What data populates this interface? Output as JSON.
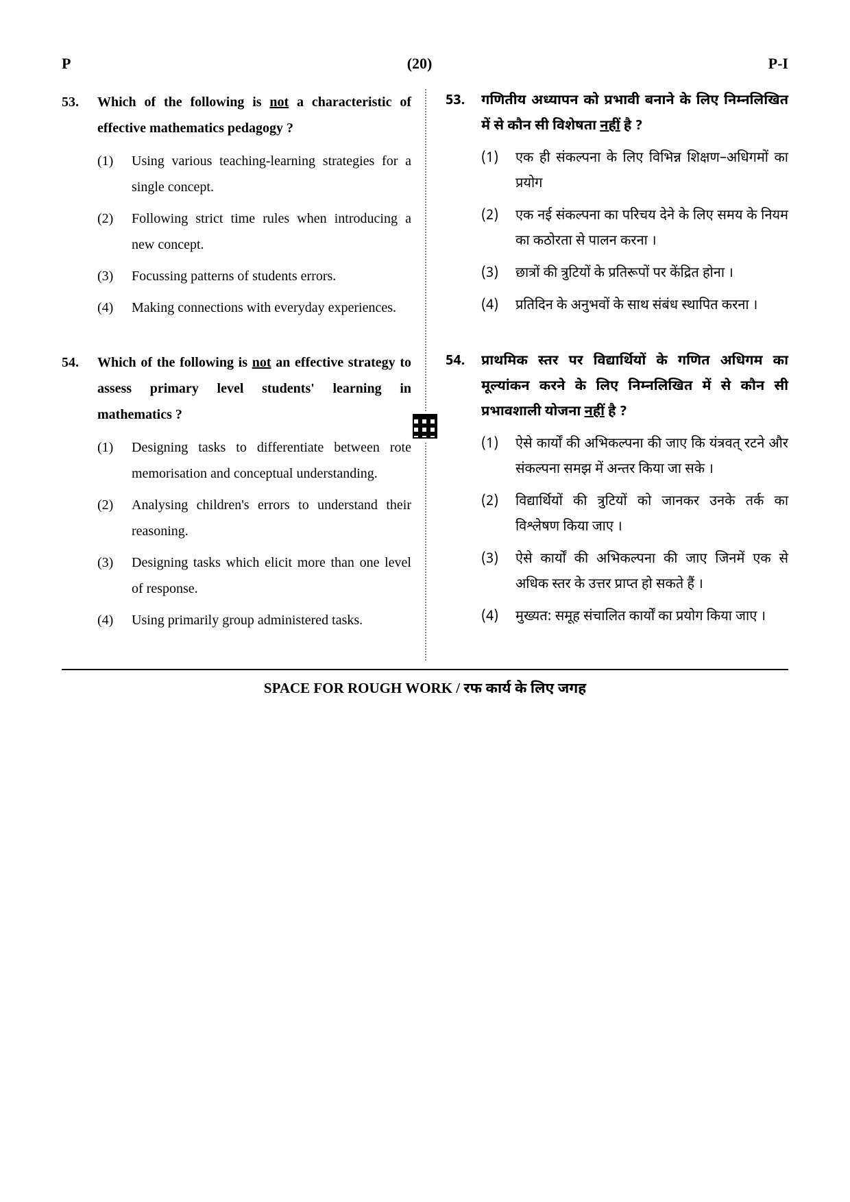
{
  "header": {
    "left": "P",
    "center": "(20)",
    "right": "P-I"
  },
  "left_col": {
    "questions": [
      {
        "num": "53.",
        "stem_before": "Which of the following is ",
        "stem_underlined": "not",
        "stem_after": " a characteristic of effective mathematics pedagogy ?",
        "options": [
          {
            "n": "(1)",
            "t": "Using various teaching-learning strategies for a single concept."
          },
          {
            "n": "(2)",
            "t": "Following strict time rules when introducing a new concept."
          },
          {
            "n": "(3)",
            "t": "Focussing patterns of students errors."
          },
          {
            "n": "(4)",
            "t": "Making connections with everyday experiences."
          }
        ]
      },
      {
        "num": "54.",
        "stem_before": "Which of the following is ",
        "stem_underlined": "not",
        "stem_after": " an effective strategy to assess primary level students' learning in mathematics ?",
        "options": [
          {
            "n": "(1)",
            "t": "Designing tasks to differentiate between rote memorisation and conceptual understanding."
          },
          {
            "n": "(2)",
            "t": "Analysing children's errors to understand their reasoning."
          },
          {
            "n": "(3)",
            "t": "Designing tasks which elicit more than one level of response."
          },
          {
            "n": "(4)",
            "t": "Using primarily group administered tasks."
          }
        ]
      }
    ]
  },
  "right_col": {
    "questions": [
      {
        "num": "53.",
        "stem_before": "गणितीय अध्यापन को प्रभावी बनाने के लिए निम्नलिखित में से कौन सी विशेषता ",
        "stem_underlined": "नहीं",
        "stem_after": " है ?",
        "options": [
          {
            "n": "(1)",
            "t": "एक ही संकल्पना के लिए विभिन्न शिक्षण–अधिगमों का प्रयोग"
          },
          {
            "n": "(2)",
            "t": "एक नई संकल्पना का परिचय देने के लिए समय के नियम का कठोरता से पालन करना ।"
          },
          {
            "n": "(3)",
            "t": "छात्रों की त्रुटियों के प्रतिरूपों पर केंद्रित होना ।"
          },
          {
            "n": "(4)",
            "t": "प्रतिदिन के अनुभवों के साथ संबंध स्थापित करना ।"
          }
        ]
      },
      {
        "num": "54.",
        "stem_before": "प्राथमिक स्तर पर विद्यार्थियों के गणित अधिगम का मूल्यांकन करने के लिए निम्नलिखित में से कौन सी प्रभावशाली योजना ",
        "stem_underlined": "नहीं",
        "stem_after": " है ?",
        "options": [
          {
            "n": "(1)",
            "t": "ऐसे कार्यों की अभिकल्पना की जाए कि यंत्रवत् रटने और संकल्पना समझ में अन्तर किया जा सके ।"
          },
          {
            "n": "(2)",
            "t": "विद्यार्थियों की त्रुटियों को जानकर उनके तर्क का विश्लेषण किया जाए ।"
          },
          {
            "n": "(3)",
            "t": "ऐसे कार्यों की अभिकल्पना की जाए जिनमें एक से अधिक स्तर के उत्तर प्राप्त हो सकते हैं ।"
          },
          {
            "n": "(4)",
            "t": "मुख्यत: समूह संचालित कार्यों का प्रयोग किया जाए ।"
          }
        ]
      }
    ]
  },
  "footer": {
    "rough_en": "SPACE FOR ROUGH WORK / ",
    "rough_hi": "रफ कार्य के लिए जगह"
  }
}
